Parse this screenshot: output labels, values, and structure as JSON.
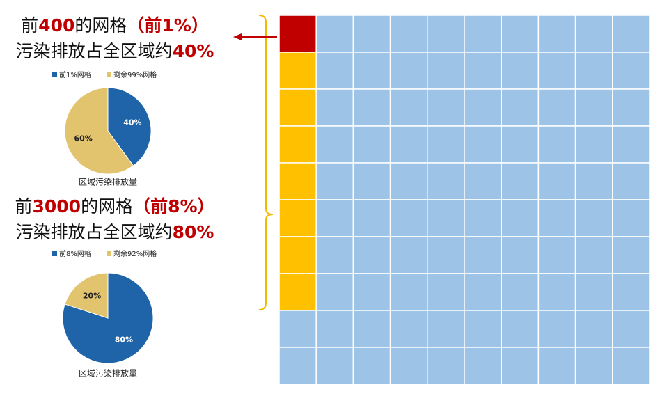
{
  "highlight_color": "#c00000",
  "callouts": [
    {
      "lines": [
        [
          {
            "text": "前",
            "highlight": false
          },
          {
            "text": "400",
            "highlight": true
          },
          {
            "text": "的网格",
            "highlight": false
          },
          {
            "text": "（前1%）",
            "highlight": true
          }
        ],
        [
          {
            "text": "污染排放占全区域约",
            "highlight": false
          },
          {
            "text": "40%",
            "highlight": true
          }
        ]
      ]
    },
    {
      "lines": [
        [
          {
            "text": "前",
            "highlight": false
          },
          {
            "text": "3000",
            "highlight": true
          },
          {
            "text": "的网格",
            "highlight": false
          },
          {
            "text": "（前8%）",
            "highlight": true
          }
        ],
        [
          {
            "text": "污染排放占全区域约",
            "highlight": false
          },
          {
            "text": "80%",
            "highlight": true
          }
        ]
      ]
    }
  ],
  "chart_data": [
    {
      "type": "pie",
      "title": "区域污染排放量",
      "categories": [
        "前1%网格",
        "剩余99%网格"
      ],
      "values": [
        40,
        60
      ],
      "value_labels": [
        "40%",
        "60%"
      ],
      "colors": [
        "#1f64a8",
        "#e2c46e"
      ]
    },
    {
      "type": "pie",
      "title": "区域污染排放量",
      "categories": [
        "前8%网格",
        "剩余92%网格"
      ],
      "values": [
        80,
        20
      ],
      "value_labels": [
        "80%",
        "20%"
      ],
      "colors": [
        "#1f64a8",
        "#e2c46e"
      ]
    }
  ]
}
